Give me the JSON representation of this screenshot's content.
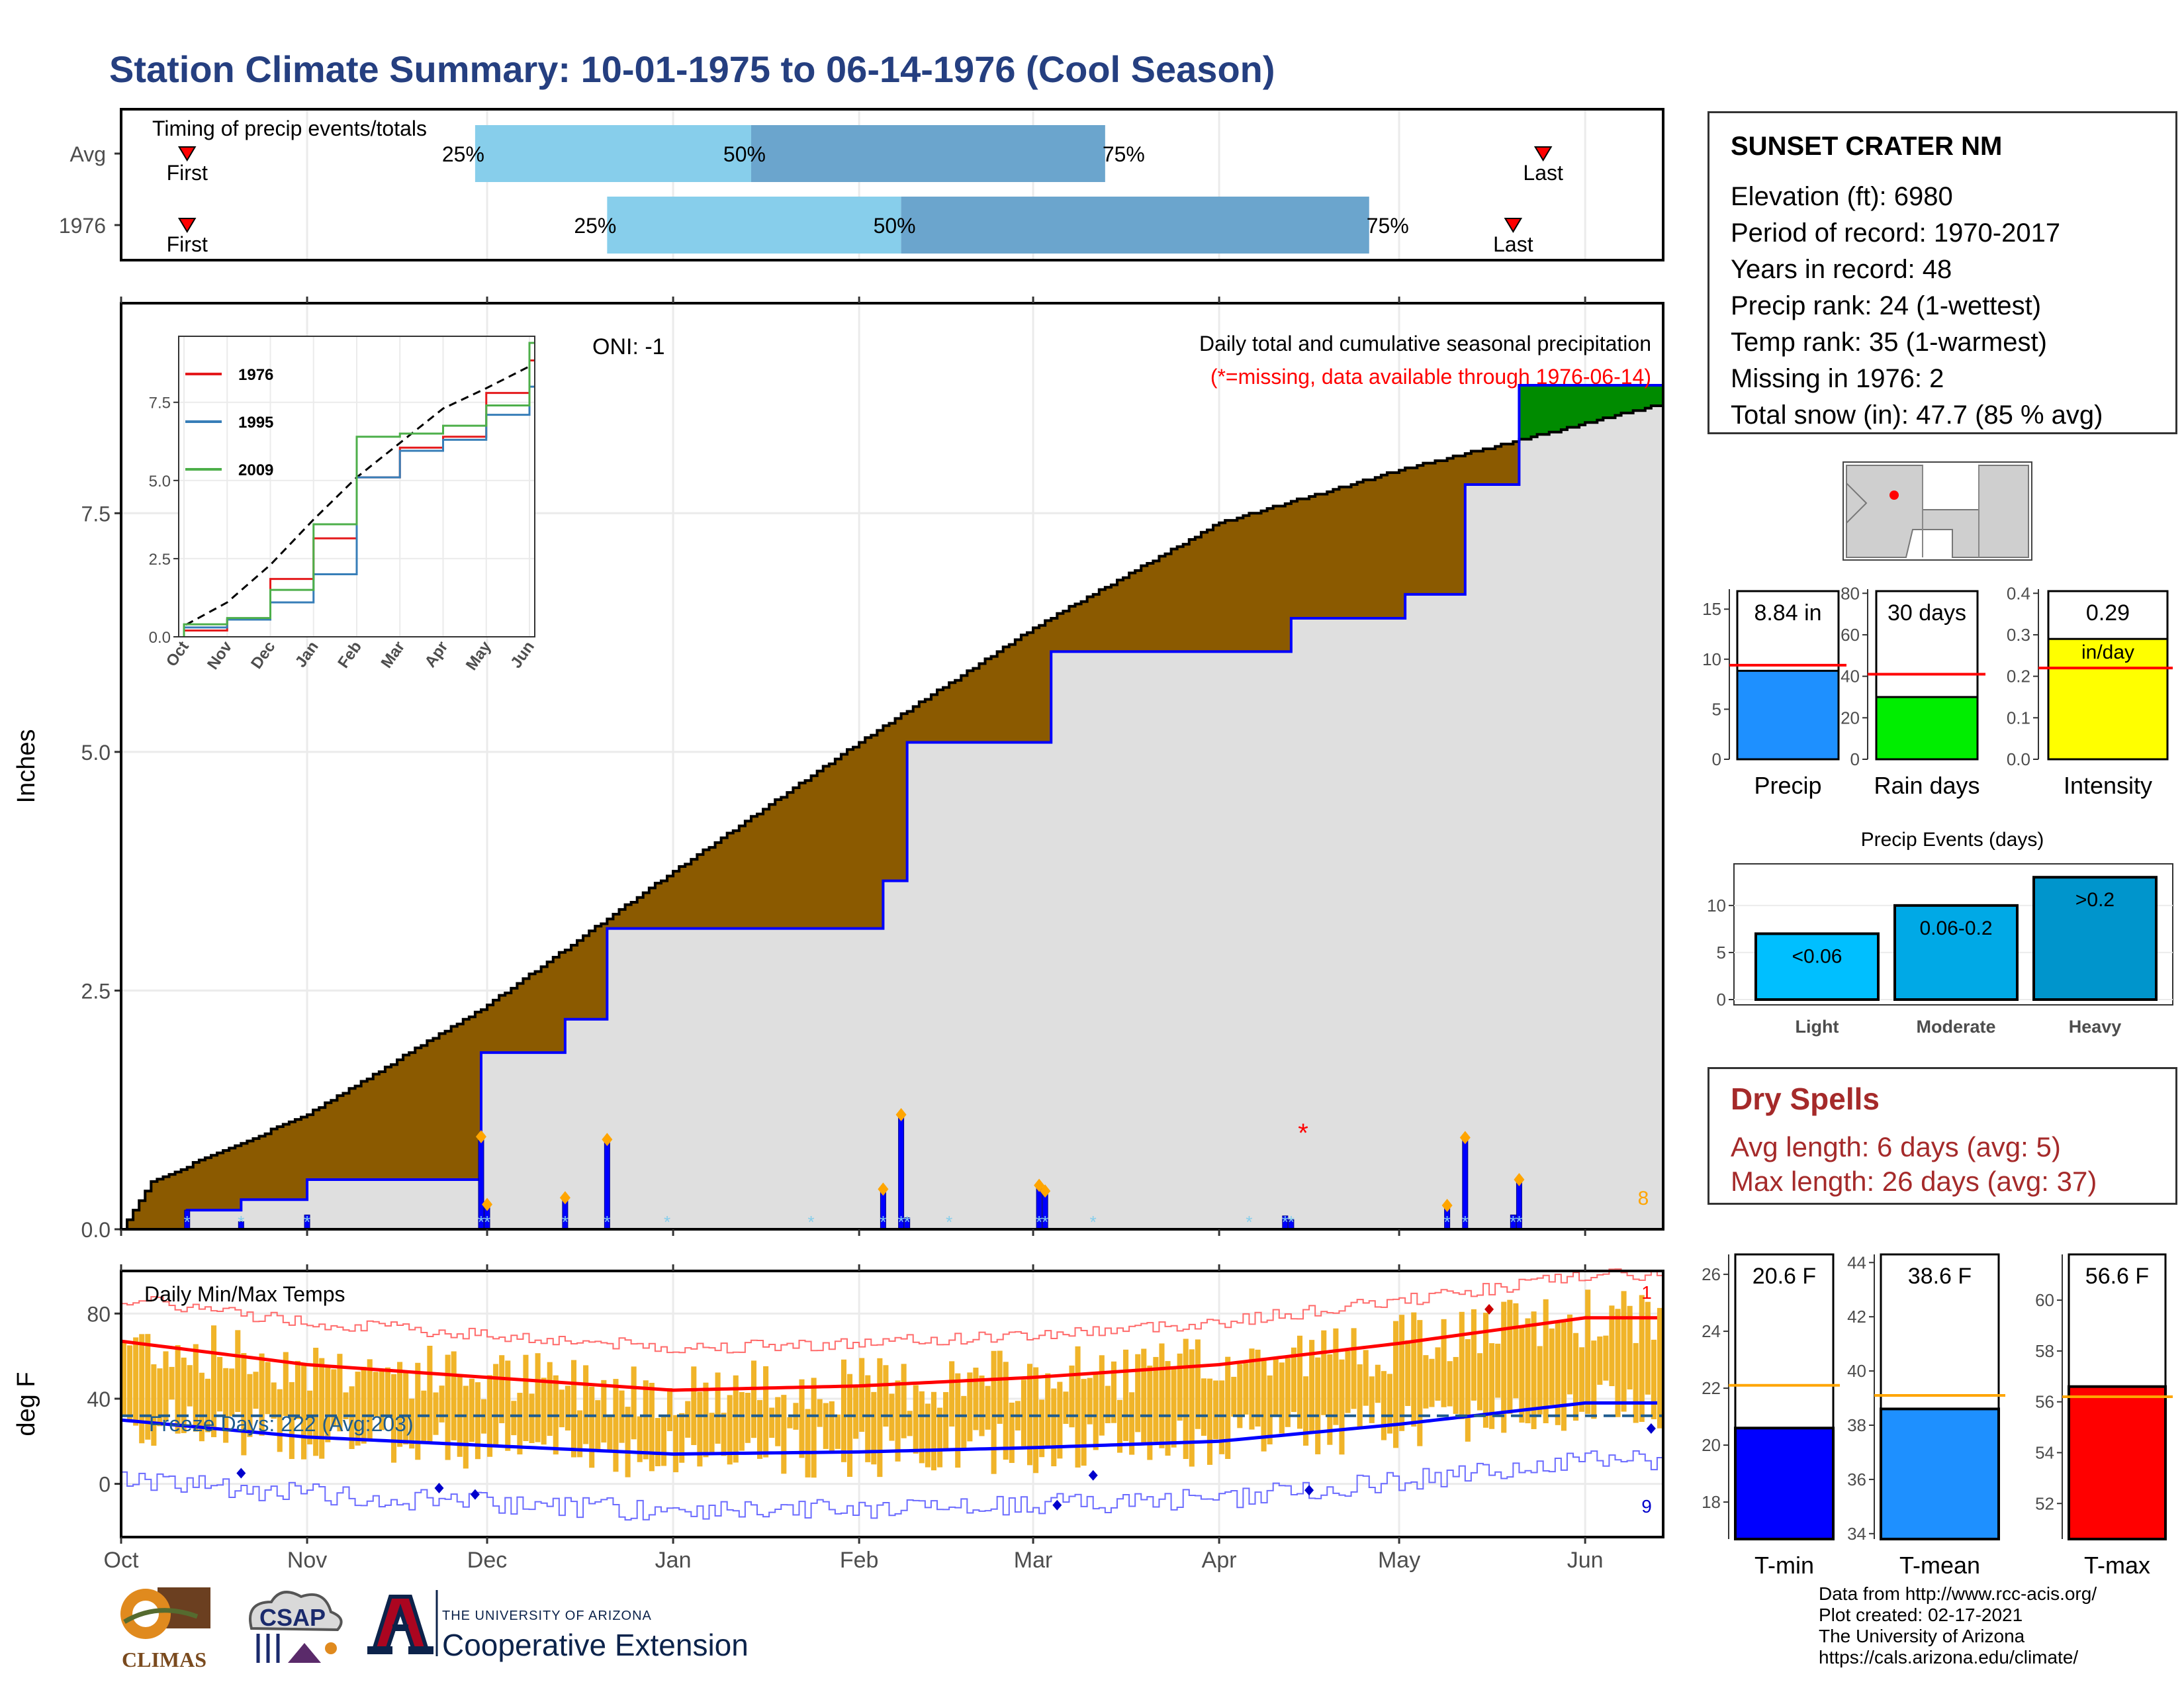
{
  "title": "Station Climate Summary: 10-01-1975 to 06-14-1976 (Cool Season)",
  "timing_panel": {
    "title": "Timing of precip events/totals",
    "rows": [
      {
        "label": "Avg",
        "first": "First",
        "last": "Last",
        "p25": "25%",
        "p50": "50%",
        "p75": "75%"
      },
      {
        "label": "1976",
        "first": "First",
        "last": "Last",
        "p25": "25%",
        "p50": "50%",
        "p75": "75%"
      }
    ]
  },
  "precip_panel": {
    "oni": "ONI: -1",
    "title": "Daily total and cumulative seasonal precipitation",
    "note": "(*=missing, data available through 1976-06-14)",
    "ylabel": "Inches",
    "count_label": "8",
    "yticks": [
      "0.0",
      "2.5",
      "5.0",
      "7.5"
    ],
    "inset": {
      "legend": [
        "1976",
        "1995",
        "2009"
      ],
      "yticks": [
        "0.0",
        "2.5",
        "5.0",
        "7.5"
      ],
      "xticks": [
        "Oct",
        "Nov",
        "Dec",
        "Jan",
        "Feb",
        "Mar",
        "Apr",
        "May",
        "Jun"
      ]
    }
  },
  "temp_panel": {
    "title": "Daily Min/Max Temps",
    "freeze": "Freeze Days: 222 (Avg:203)",
    "ylabel": "deg F",
    "yticks": [
      "0",
      "40",
      "80"
    ],
    "max_count": "1",
    "min_count": "9"
  },
  "months": [
    "Oct",
    "Nov",
    "Dec",
    "Jan",
    "Feb",
    "Mar",
    "Apr",
    "May",
    "Jun"
  ],
  "station": {
    "name": "SUNSET CRATER NM",
    "rows": [
      "Elevation (ft): 6980",
      "Period of record: 1970-2017",
      "Years in record: 48",
      "Precip rank: 24 (1-wettest)",
      "Temp rank: 35 (1-warmest)",
      "Missing in 1976: 2",
      "Total snow (in): 47.7 (85 % avg)"
    ]
  },
  "summary_bars": {
    "precip": {
      "label": "Precip",
      "value_label": "8.84 in",
      "value": 8.84,
      "avg": 9.4,
      "yticks": [
        "0",
        "5",
        "10",
        "15"
      ],
      "ymax": 17,
      "color": "#1e90ff"
    },
    "rain_days": {
      "label": "Rain days",
      "value_label": "30 days",
      "value": 30,
      "avg": 41,
      "yticks": [
        "0",
        "20",
        "40",
        "60",
        "80"
      ],
      "ymax": 82,
      "color": "#00ee00"
    },
    "intensity": {
      "label": "Intensity",
      "value_label": "0.29",
      "value_unit": "in/day",
      "value": 0.29,
      "avg": 0.22,
      "yticks": [
        "0.0",
        "0.1",
        "0.2",
        "0.3",
        "0.4"
      ],
      "ymax": 0.41,
      "color": "#ffff00"
    }
  },
  "precip_events": {
    "title": "Precip Events (days)",
    "yticks": [
      "0",
      "5",
      "10"
    ],
    "bars": [
      {
        "label": "Light",
        "range": "<0.06",
        "value": 7
      },
      {
        "label": "Moderate",
        "range": "0.06-0.2",
        "value": 10
      },
      {
        "label": "Heavy",
        "range": ">0.2",
        "value": 13
      }
    ]
  },
  "dry_spells": {
    "title": "Dry Spells",
    "avg": "Avg length: 6 days (avg: 5)",
    "max": "Max length: 26 days (avg: 37)"
  },
  "temp_bars": {
    "tmin": {
      "label": "T-min",
      "value_label": "20.6 F",
      "value": 20.6,
      "avg": 22.1,
      "ymin": 16.7,
      "ymax": 26.7,
      "yticks": [
        "18",
        "20",
        "22",
        "24",
        "26"
      ],
      "color": "#0000ff"
    },
    "tmean": {
      "label": "T-mean",
      "value_label": "38.6 F",
      "value": 38.6,
      "avg": 39.1,
      "ymin": 33.8,
      "ymax": 44.3,
      "yticks": [
        "34",
        "36",
        "38",
        "40",
        "42",
        "44"
      ],
      "color": "#1e90ff"
    },
    "tmax": {
      "label": "T-max",
      "value_label": "56.6 F",
      "value": 56.6,
      "avg": 56.2,
      "ymin": 50.6,
      "ymax": 61.8,
      "yticks": [
        "52",
        "54",
        "56",
        "58",
        "60"
      ],
      "color": "#ff0000"
    }
  },
  "credits": [
    "Data from http://www.rcc-acis.org/",
    "Plot created: 02-17-2021",
    "The University of Arizona",
    "https://cals.arizona.edu/climate/"
  ],
  "logos": {
    "climas": "CLIMAS",
    "csap": "CSAP",
    "ua_small": "THE UNIVERSITY OF ARIZONA",
    "ua_big": "Cooperative Extension"
  },
  "chart_data": [
    {
      "type": "bar",
      "title": "Timing of precip events/totals",
      "categories": [
        "Avg",
        "1976"
      ],
      "series": [
        {
          "name": "25%",
          "values": [
            "1975-11-29",
            "1975-12-21"
          ]
        },
        {
          "name": "50%",
          "values": [
            "1976-01-14",
            "1976-02-08"
          ]
        },
        {
          "name": "75%",
          "values": [
            "1976-03-13",
            "1976-04-26"
          ]
        },
        {
          "name": "First",
          "values": [
            "1975-10-12",
            "1975-10-12"
          ]
        },
        {
          "name": "Last",
          "values": [
            "1976-05-25",
            "1976-05-20"
          ]
        }
      ]
    },
    {
      "type": "area",
      "title": "Daily total and cumulative seasonal precipitation",
      "ylabel": "Inches",
      "ylim": [
        0,
        9.7
      ],
      "series": [
        {
          "name": "Average cumulative",
          "x": [
            "1975-10-01",
            "1975-10-06",
            "1975-11-01",
            "1975-12-01",
            "1976-01-01",
            "1976-02-01",
            "1976-03-01",
            "1976-04-01",
            "1976-05-01",
            "1976-05-20",
            "1976-06-14"
          ],
          "values": [
            0.0,
            0.5,
            1.2,
            2.35,
            3.75,
            5.1,
            6.3,
            7.4,
            7.95,
            8.25,
            8.65
          ]
        },
        {
          "name": "1976 cumulative",
          "x": [
            "1975-10-01",
            "1975-10-12",
            "1975-10-21",
            "1975-11-01",
            "1975-11-30",
            "1975-12-14",
            "1975-12-21",
            "1976-02-05",
            "1976-02-09",
            "1976-03-04",
            "1976-04-13",
            "1976-05-02",
            "1976-05-12",
            "1976-05-21",
            "1976-06-14"
          ],
          "values": [
            0.0,
            0.2,
            0.31,
            0.52,
            1.85,
            2.2,
            3.15,
            3.65,
            5.1,
            6.05,
            6.4,
            6.65,
            7.8,
            8.84,
            8.84
          ]
        },
        {
          "name": "Daily precip",
          "x": [
            "1975-10-12",
            "1975-10-21",
            "1975-11-01",
            "1975-11-30",
            "1975-12-01",
            "1975-12-14",
            "1975-12-21",
            "1976-02-05",
            "1976-02-08",
            "1976-02-09",
            "1976-03-02",
            "1976-03-03",
            "1976-04-12",
            "1976-04-13",
            "1976-05-09",
            "1976-05-12",
            "1976-05-20",
            "1976-05-21"
          ],
          "values": [
            0.2,
            0.08,
            0.15,
            0.97,
            0.26,
            0.33,
            0.94,
            0.42,
            1.2,
            0.12,
            0.46,
            0.4,
            0.14,
            0.1,
            0.25,
            0.96,
            0.15,
            0.52
          ]
        }
      ]
    },
    {
      "type": "line",
      "title": "",
      "xlabel": "",
      "categories": [
        "Oct",
        "Nov",
        "Dec",
        "Jan",
        "Feb",
        "Mar",
        "Apr",
        "May",
        "Jun"
      ],
      "ylim": [
        0,
        9.4
      ],
      "series": [
        {
          "name": "1976",
          "values": [
            0.2,
            0.55,
            1.85,
            3.15,
            5.1,
            6.05,
            6.4,
            7.8,
            8.84
          ]
        },
        {
          "name": "1995",
          "values": [
            0.3,
            0.55,
            1.1,
            2.0,
            5.1,
            5.95,
            6.3,
            7.1,
            8.0
          ]
        },
        {
          "name": "2009",
          "values": [
            0.4,
            0.6,
            1.5,
            3.6,
            6.4,
            6.5,
            6.75,
            7.4,
            9.4
          ]
        }
      ]
    },
    {
      "type": "line",
      "title": "Daily Min/Max Temps",
      "ylabel": "deg F",
      "ylim": [
        -25,
        100
      ],
      "series": [
        {
          "name": "Avg max",
          "x": [
            "Oct",
            "Nov",
            "Dec",
            "Jan",
            "Feb",
            "Mar",
            "Apr",
            "May",
            "Jun"
          ],
          "values": [
            67,
            56,
            50,
            44,
            46,
            50,
            56,
            66,
            78
          ]
        },
        {
          "name": "Avg min",
          "x": [
            "Oct",
            "Nov",
            "Dec",
            "Jan",
            "Feb",
            "Mar",
            "Apr",
            "May",
            "Jun"
          ],
          "values": [
            30,
            22,
            18,
            14,
            15,
            17,
            20,
            28,
            38
          ]
        },
        {
          "name": "Freeze threshold",
          "values": [
            32
          ]
        }
      ]
    },
    {
      "type": "bar",
      "categories": [
        "Precip",
        "Rain days",
        "Intensity",
        "Light",
        "Moderate",
        "Heavy",
        "T-min",
        "T-mean",
        "T-max"
      ],
      "values": [
        8.84,
        30,
        0.29,
        7,
        10,
        13,
        20.6,
        38.6,
        56.6
      ]
    }
  ]
}
